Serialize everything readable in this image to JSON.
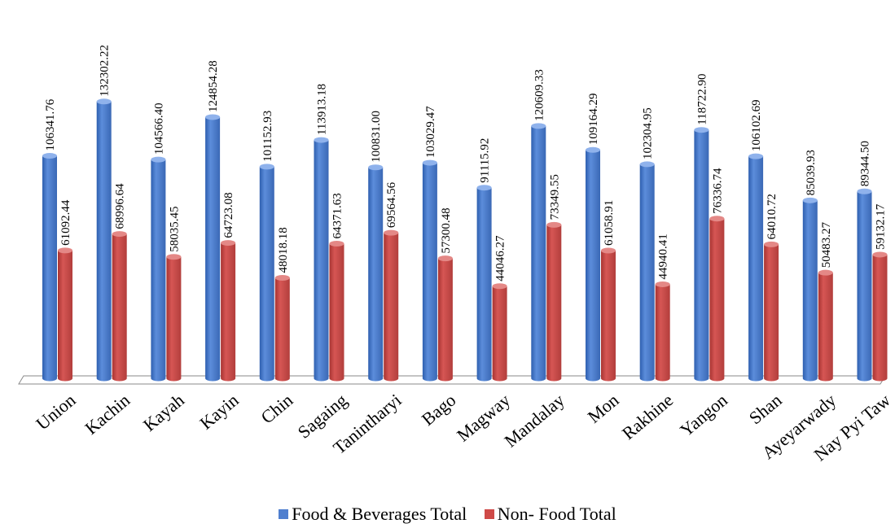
{
  "chart_data": {
    "type": "bar",
    "style": "3d-clustered-column",
    "categories": [
      "Union",
      "Kachin",
      "Kayah",
      "Kayin",
      "Chin",
      "Sagaing",
      "Tanintharyi",
      "Bago",
      "Magway",
      "Mandalay",
      "Mon",
      "Rakhine",
      "Yangon",
      "Shan",
      "Ayeyarwady",
      "Nay Pyi Taw"
    ],
    "series": [
      {
        "name": "Food & Beverages Total",
        "color": "#4F7FCF",
        "values": [
          106341.76,
          132302.22,
          104566.4,
          124854.28,
          101152.93,
          113913.18,
          100831.0,
          103029.47,
          91115.92,
          120609.33,
          109164.29,
          102304.95,
          118722.9,
          106102.69,
          85039.93,
          89344.5
        ],
        "labels": [
          "106341.76",
          "132302.22",
          "104566.40",
          "124854.28",
          "101152.93",
          "113913.18",
          "100831.00",
          "103029.47",
          "91115.92",
          "120609.33",
          "109164.29",
          "102304.95",
          "118722.90",
          "106102.69",
          "85039.93",
          "89344.50"
        ]
      },
      {
        "name": "Non- Food Total",
        "color": "#CF4A48",
        "values": [
          61092.44,
          68996.64,
          58035.45,
          64723.08,
          48018.18,
          64371.63,
          69564.56,
          57300.48,
          44046.27,
          73349.55,
          61058.91,
          44940.41,
          76336.74,
          64010.72,
          50483.27,
          59132.17
        ],
        "labels": [
          "61092.44",
          "68996.64",
          "58035.45",
          "64723.08",
          "48018.18",
          "64371.63",
          "69564.56",
          "57300.48",
          "44046.27",
          "73349.55",
          "61058.91",
          "44940.41",
          "76336.74",
          "64010.72",
          "50483.27",
          "59132.17"
        ]
      }
    ],
    "title": "",
    "xlabel": "",
    "ylabel": "",
    "ylim": [
      0,
      140000
    ],
    "grid": false,
    "legend": "bottom"
  }
}
